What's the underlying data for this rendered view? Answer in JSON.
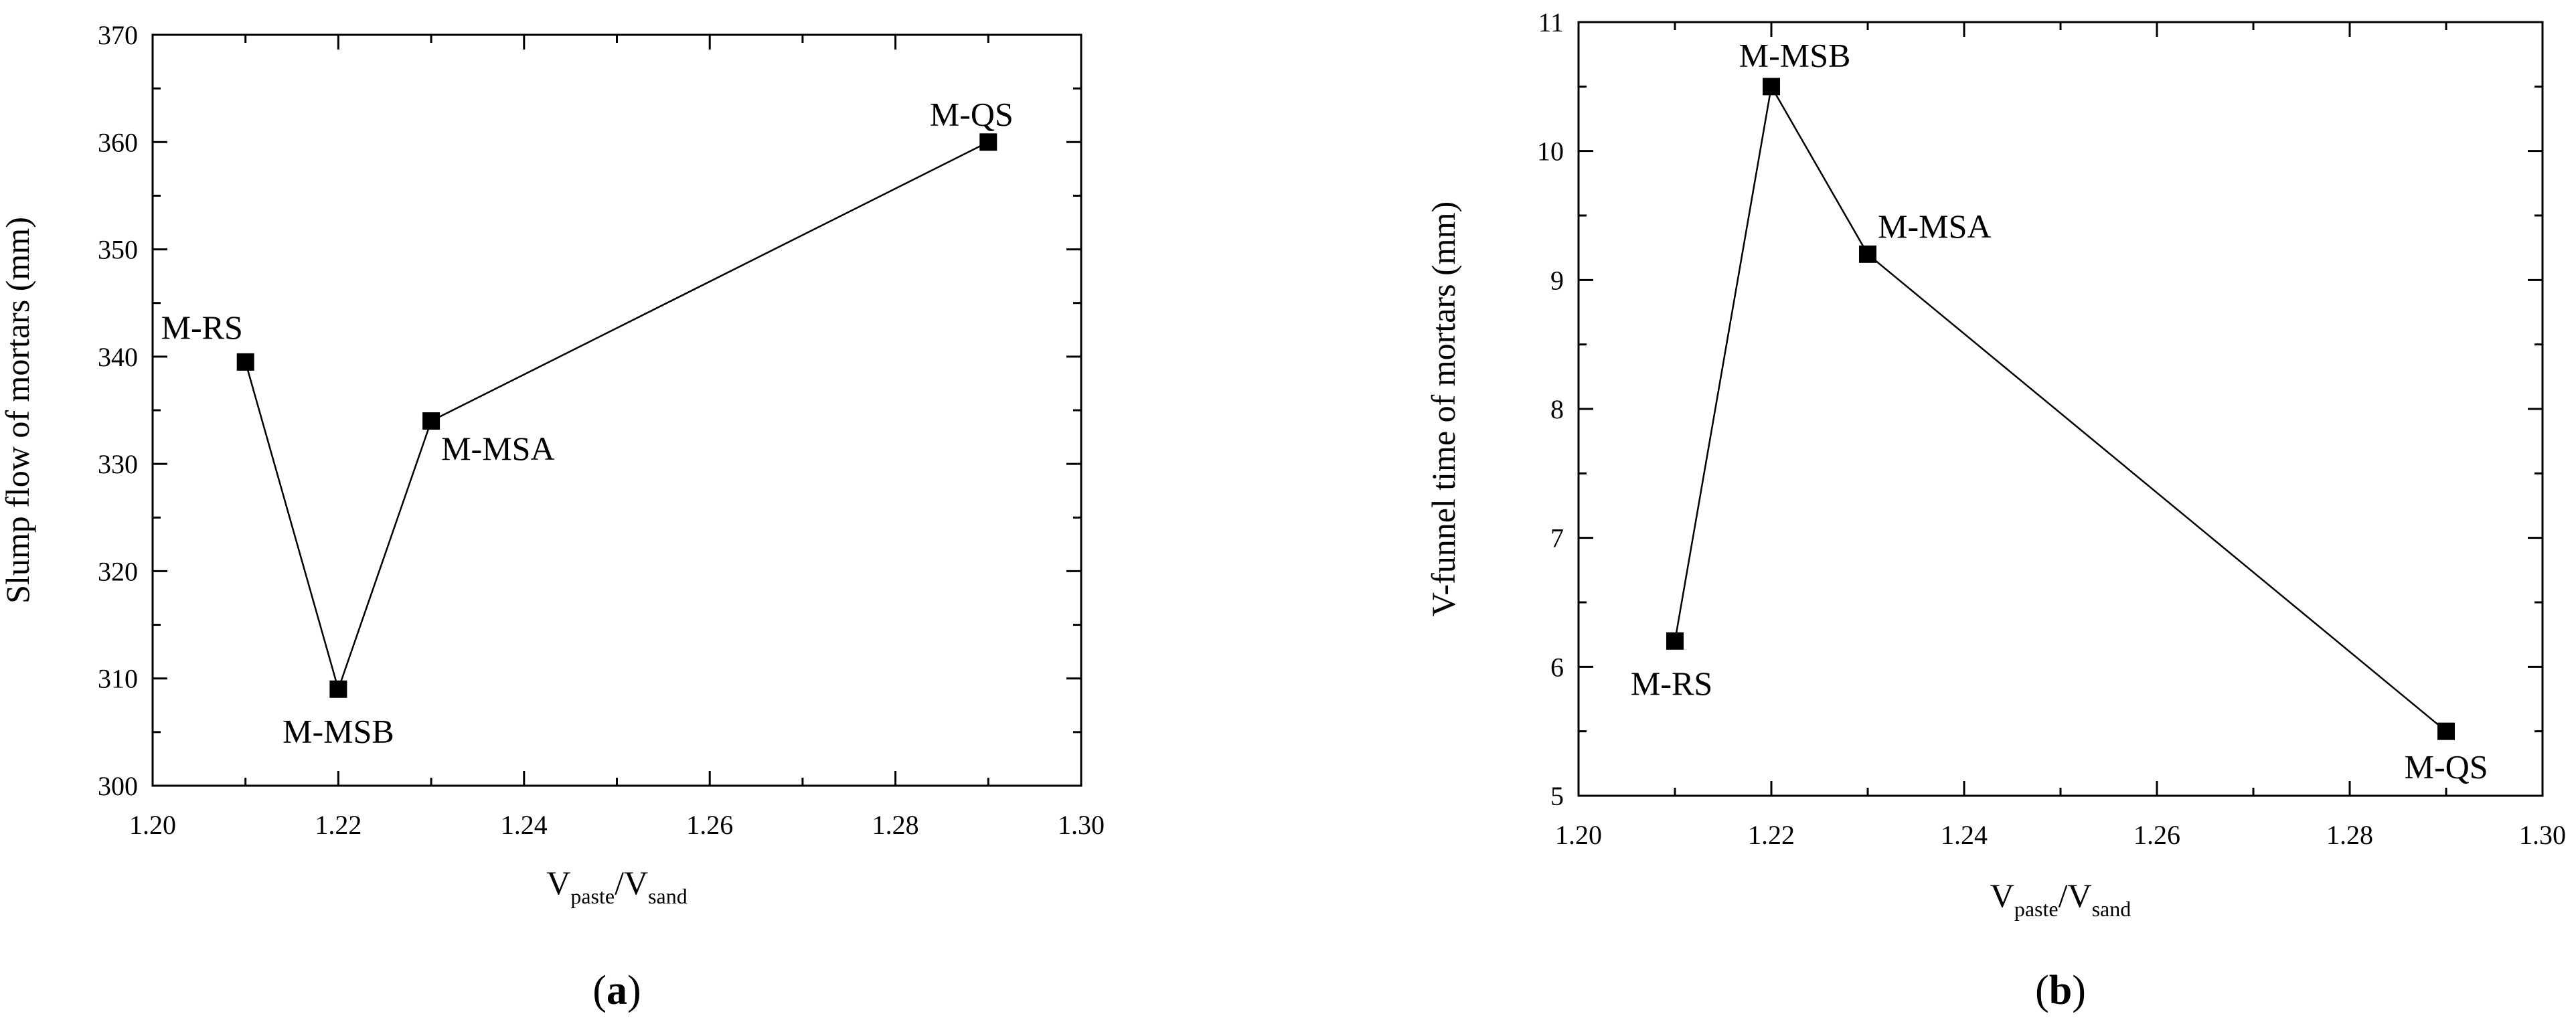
{
  "chart_data": [
    {
      "type": "line",
      "panel_label": "(a)",
      "xlabel_main": "V",
      "xlabel_sub1": "paste",
      "xlabel_sep": "/V",
      "xlabel_sub2": "sand",
      "ylabel": "Slump flow of mortars (mm)",
      "xlim": [
        1.2,
        1.3
      ],
      "ylim": [
        300,
        370
      ],
      "xticks": [
        "1.20",
        "1.22",
        "1.24",
        "1.26",
        "1.28",
        "1.30"
      ],
      "yticks": [
        "300",
        "310",
        "320",
        "330",
        "340",
        "350",
        "360",
        "370"
      ],
      "grid": false,
      "points": [
        {
          "label": "M-RS",
          "x": 1.21,
          "y": 339.5
        },
        {
          "label": "M-MSB",
          "x": 1.22,
          "y": 309
        },
        {
          "label": "M-MSA",
          "x": 1.23,
          "y": 334
        },
        {
          "label": "M-QS",
          "x": 1.29,
          "y": 360
        }
      ]
    },
    {
      "type": "line",
      "panel_label": "(b)",
      "xlabel_main": "V",
      "xlabel_sub1": "paste",
      "xlabel_sep": "/V",
      "xlabel_sub2": "sand",
      "ylabel": "V-funnel time of mortars (mm)",
      "xlim": [
        1.2,
        1.3
      ],
      "ylim": [
        5,
        11
      ],
      "xticks": [
        "1.20",
        "1.22",
        "1.24",
        "1.26",
        "1.28",
        "1.30"
      ],
      "yticks": [
        "5",
        "6",
        "7",
        "8",
        "9",
        "10",
        "11"
      ],
      "grid": false,
      "points": [
        {
          "label": "M-RS",
          "x": 1.21,
          "y": 6.2
        },
        {
          "label": "M-MSB",
          "x": 1.22,
          "y": 10.5
        },
        {
          "label": "M-MSA",
          "x": 1.23,
          "y": 9.2
        },
        {
          "label": "M-QS",
          "x": 1.29,
          "y": 5.5
        }
      ]
    }
  ]
}
